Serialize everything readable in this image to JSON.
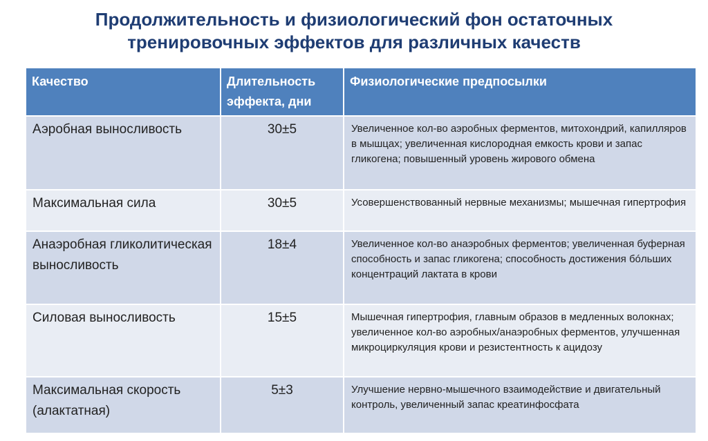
{
  "title": {
    "line1": "Продолжительность и физиологический фон остаточных",
    "line2": "тренировочных эффектов для различных качеств"
  },
  "colors": {
    "title": "#1f3d73",
    "header": "#4f81bd",
    "row_odd": "#d0d8e8",
    "row_even": "#e9edf4"
  },
  "table": {
    "headers": [
      "Качество",
      "Длительность эффекта, дни",
      "Физиологические предпосылки"
    ],
    "rows": [
      {
        "quality": "Аэробная выносливость",
        "duration": "30±5",
        "basis": "Увеличенное кол-во аэробных ферментов, митохондрий, капилляров в мышцах; увеличенная кислородная емкость крови и запас гликогена; повышенный уровень жирового обмена"
      },
      {
        "quality": "Максимальная сила",
        "duration": "30±5",
        "basis": "Усовершенствованный нервные механизмы; мышечная гипертрофия"
      },
      {
        "quality": "Анаэробная гликолитическая выносливость",
        "duration": "18±4",
        "basis": "Увеличенное кол-во анаэробных ферментов; увеличенная буферная способность и запас гликогена; способность достижения бóльших концентраций лактата в крови"
      },
      {
        "quality": "Силовая выносливость",
        "duration": "15±5",
        "basis": "Мышечная гипертрофия, главным образов в медленных волокнах; увеличенное кол-во аэробных/анаэробных ферментов, улучшенная микроциркуляция крови и резистентность к ацидозу"
      },
      {
        "quality": "Максимальная скорость (алактатная)",
        "duration": "5±3",
        "basis": "Улучшение нервно-мышечного взаимодействие и двигательный контроль, увеличенный запас креатинфосфата"
      }
    ]
  }
}
